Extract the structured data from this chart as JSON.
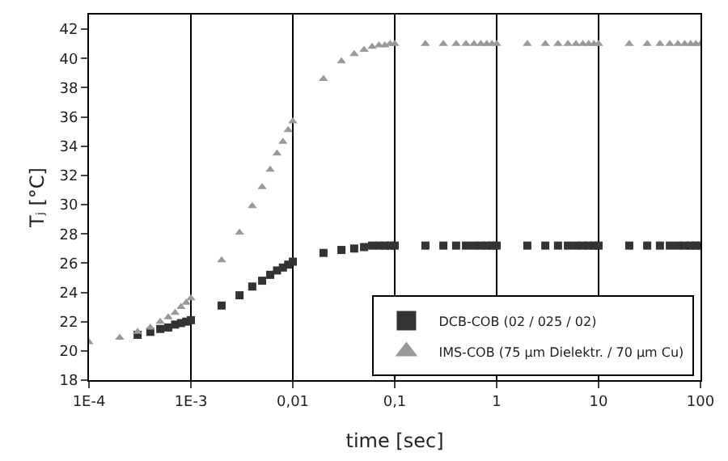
{
  "chart_data": {
    "type": "scatter",
    "xlabel": "time [sec]",
    "ylabel": "Tⱼ [°C]",
    "log": "x",
    "xlim": [
      0.0001,
      100
    ],
    "xticks": [
      {
        "value": 0.0001,
        "label": "1E-4"
      },
      {
        "value": 0.001,
        "label": "1E-3"
      },
      {
        "value": 0.01,
        "label": "0,01"
      },
      {
        "value": 0.1,
        "label": "0,1"
      },
      1,
      10,
      100
    ],
    "ylim": [
      18,
      43
    ],
    "yticks": [
      18,
      20,
      22,
      24,
      26,
      28,
      30,
      32,
      34,
      36,
      38,
      40,
      42
    ],
    "grid": "x",
    "legend": "bottom right",
    "series": [
      {
        "name": "DCB-COB (02 / 025 / 02)",
        "color": "#333333",
        "marker": "square",
        "x": [
          0.0003,
          0.0004,
          0.0005,
          0.0006,
          0.0007,
          0.0008,
          0.0009,
          0.001,
          0.002,
          0.003,
          0.004,
          0.005,
          0.006,
          0.007,
          0.008,
          0.009,
          0.01,
          0.02,
          0.03,
          0.04,
          0.05,
          0.06,
          0.07,
          0.08,
          0.09,
          0.1,
          0.2,
          0.3,
          0.4,
          0.5,
          0.6,
          0.7,
          0.8,
          0.9,
          1,
          2,
          3,
          4,
          5,
          6,
          7,
          8,
          9,
          10,
          20,
          30,
          40,
          50,
          60,
          70,
          80,
          90,
          100
        ],
        "values": [
          21.1,
          21.3,
          21.5,
          21.6,
          21.8,
          21.9,
          22.0,
          22.1,
          23.1,
          23.8,
          24.4,
          24.8,
          25.2,
          25.5,
          25.7,
          25.9,
          26.1,
          26.7,
          26.9,
          27.0,
          27.1,
          27.2,
          27.2,
          27.2,
          27.2,
          27.2,
          27.2,
          27.2,
          27.2,
          27.2,
          27.2,
          27.2,
          27.2,
          27.2,
          27.2,
          27.2,
          27.2,
          27.2,
          27.2,
          27.2,
          27.2,
          27.2,
          27.2,
          27.2,
          27.2,
          27.2,
          27.2,
          27.2,
          27.2,
          27.2,
          27.2,
          27.2,
          27.2
        ]
      },
      {
        "name": "IMS-COB (75 µm Dielektr. / 70 µm Cu)",
        "color": "#999999",
        "marker": "triangle",
        "x": [
          0.0001,
          0.0002,
          0.0003,
          0.0004,
          0.0005,
          0.0006,
          0.0007,
          0.0008,
          0.0009,
          0.001,
          0.002,
          0.003,
          0.004,
          0.005,
          0.006,
          0.007,
          0.008,
          0.009,
          0.01,
          0.02,
          0.03,
          0.04,
          0.05,
          0.06,
          0.07,
          0.08,
          0.09,
          0.1,
          0.2,
          0.3,
          0.4,
          0.5,
          0.6,
          0.7,
          0.8,
          0.9,
          1,
          2,
          3,
          4,
          5,
          6,
          7,
          8,
          9,
          10,
          20,
          30,
          40,
          50,
          60,
          70,
          80,
          90,
          100
        ],
        "values": [
          20.6,
          20.9,
          21.3,
          21.6,
          22.0,
          22.3,
          22.6,
          23.0,
          23.3,
          23.6,
          26.2,
          28.1,
          29.9,
          31.2,
          32.4,
          33.5,
          34.3,
          35.1,
          35.7,
          38.6,
          39.8,
          40.3,
          40.6,
          40.8,
          40.9,
          40.9,
          41.0,
          41.0,
          41.0,
          41.0,
          41.0,
          41.0,
          41.0,
          41.0,
          41.0,
          41.0,
          41.0,
          41.0,
          41.0,
          41.0,
          41.0,
          41.0,
          41.0,
          41.0,
          41.0,
          41.0,
          41.0,
          41.0,
          41.0,
          41.0,
          41.0,
          41.0,
          41.0,
          41.0,
          41.0
        ]
      }
    ]
  }
}
